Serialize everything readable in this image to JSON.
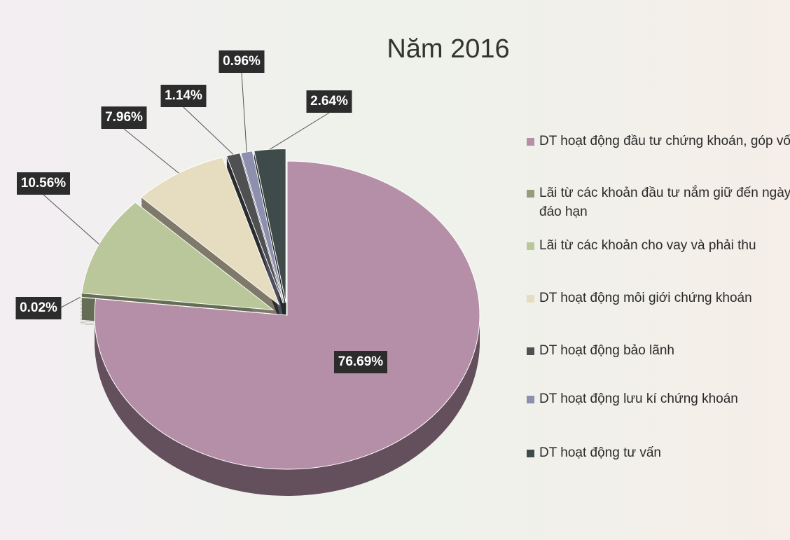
{
  "chart_data": {
    "type": "pie",
    "title": "Năm 2016",
    "categories": [
      "DT hoạt động đầu tư chứng khoán, góp vốn",
      "Lãi từ các khoản đầu tư nắm giữ đến ngày đáo hạn",
      "Lãi từ các khoản cho vay và phải thu",
      "DT hoạt động môi giới chứng khoán",
      "DT hoạt động bảo lãnh",
      "DT hoạt động lưu kí chứng khoán",
      "DT hoạt động tư vấn"
    ],
    "values": [
      76.69,
      0.02,
      10.56,
      7.96,
      1.14,
      0.96,
      2.64
    ],
    "value_labels": [
      "76.69%",
      "0.02%",
      "10.56%",
      "7.96%",
      "1.14%",
      "0.96%",
      "2.64%"
    ],
    "colors": [
      "#b58fa8",
      "#9a9a7c",
      "#b9c79a",
      "#e6dcc0",
      "#4f5052",
      "#8c8fae",
      "#3f4a4a"
    ],
    "legend": "right"
  }
}
